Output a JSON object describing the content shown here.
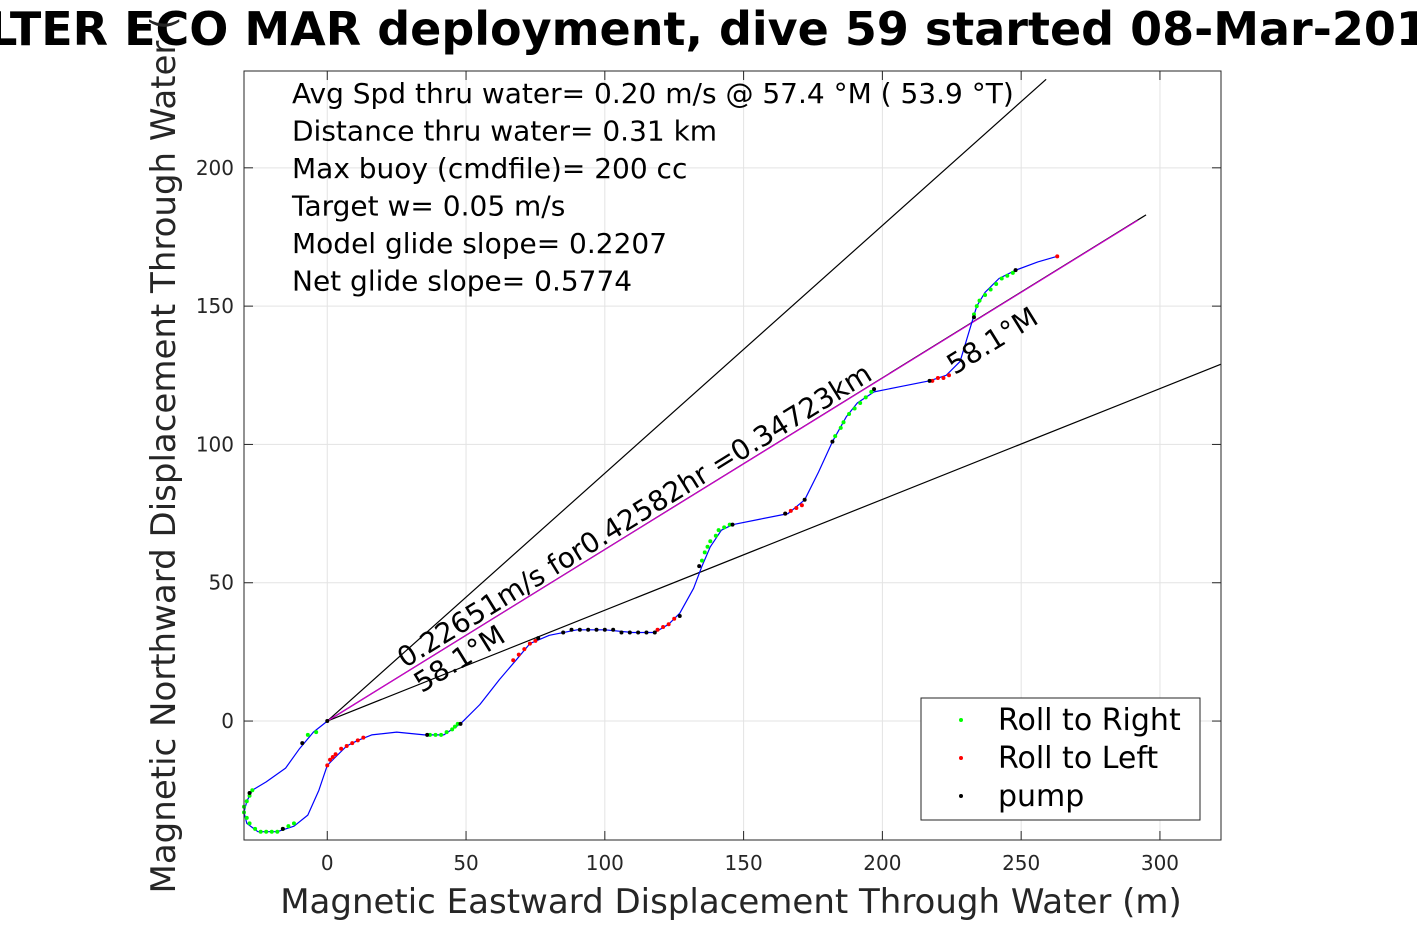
{
  "chart_data": {
    "type": "scatter",
    "title": "LTER ECO MAR deployment, dive 59 started 08-Mar-201",
    "xlabel": "Magnetic Eastward Displacement Through Water (m)",
    "ylabel": "Magnetic Northward Displacement Through Water (",
    "xlim": [
      -30,
      322
    ],
    "ylim": [
      -43,
      235
    ],
    "xticks": [
      0,
      50,
      100,
      150,
      200,
      250,
      300
    ],
    "yticks": [
      0,
      50,
      100,
      150,
      200
    ],
    "grid": true,
    "legend_position": "bottom-right",
    "info_lines": [
      "Avg Spd thru water=  0.20 m/s @  57.4 °M ( 53.9 °T)",
      "Distance thru water=  0.31 km",
      "Max buoy (cmdfile)= 200 cc",
      "Target w= 0.05 m/s",
      "Model glide slope= 0.2207",
      "Net glide slope= 0.5774"
    ],
    "annotations": {
      "speed_label": "0.22651m/s for0.42582hr =0.34723km",
      "heading_start": "58.1°M",
      "heading_end": "58.1°M"
    },
    "reference_lines": [
      {
        "name": "upper-cone",
        "color": "#000000",
        "points": [
          [
            0,
            0
          ],
          [
            259,
            232
          ]
        ]
      },
      {
        "name": "lower-cone",
        "color": "#000000",
        "points": [
          [
            0,
            0
          ],
          [
            322,
            129
          ]
        ]
      },
      {
        "name": "net-track",
        "color": "#000000",
        "points": [
          [
            0,
            0
          ],
          [
            295,
            183
          ]
        ]
      },
      {
        "name": "track-fit",
        "color": "#cc00cc",
        "points": [
          [
            0,
            0
          ],
          [
            292,
            181
          ]
        ]
      }
    ],
    "track": {
      "color": "#0000ff",
      "points": [
        [
          0,
          0
        ],
        [
          -5,
          -4
        ],
        [
          -10,
          -10
        ],
        [
          -15,
          -17
        ],
        [
          -22,
          -22
        ],
        [
          -27,
          -25
        ],
        [
          -29,
          -29
        ],
        [
          -30,
          -33
        ],
        [
          -29,
          -37
        ],
        [
          -25,
          -40
        ],
        [
          -18,
          -40
        ],
        [
          -12,
          -38
        ],
        [
          -7,
          -34
        ],
        [
          -3,
          -25
        ],
        [
          0,
          -16
        ],
        [
          3,
          -13
        ],
        [
          7,
          -9
        ],
        [
          11,
          -7
        ],
        [
          16,
          -5
        ],
        [
          25,
          -4
        ],
        [
          35,
          -5
        ],
        [
          42,
          -5
        ],
        [
          48,
          -1
        ],
        [
          55,
          6
        ],
        [
          62,
          15
        ],
        [
          68,
          22
        ],
        [
          73,
          28
        ],
        [
          80,
          31
        ],
        [
          90,
          33
        ],
        [
          100,
          33
        ],
        [
          110,
          32
        ],
        [
          118,
          32
        ],
        [
          123,
          35
        ],
        [
          127,
          39
        ],
        [
          132,
          48
        ],
        [
          135,
          56
        ],
        [
          138,
          63
        ],
        [
          142,
          69
        ],
        [
          146,
          71
        ],
        [
          156,
          73
        ],
        [
          166,
          75
        ],
        [
          172,
          80
        ],
        [
          177,
          90
        ],
        [
          182,
          101
        ],
        [
          187,
          110
        ],
        [
          191,
          115
        ],
        [
          197,
          119
        ],
        [
          207,
          121
        ],
        [
          217,
          123
        ],
        [
          223,
          125
        ],
        [
          228,
          130
        ],
        [
          231,
          140
        ],
        [
          234,
          150
        ],
        [
          237,
          155
        ],
        [
          242,
          160
        ],
        [
          248,
          163
        ],
        [
          256,
          166
        ],
        [
          263,
          168
        ]
      ]
    },
    "series": [
      {
        "name": "Roll to Right",
        "color": "#00ff00",
        "points": [
          [
            -4,
            -4
          ],
          [
            -7,
            -5
          ],
          [
            -27,
            -25
          ],
          [
            -28,
            -27
          ],
          [
            -29,
            -29
          ],
          [
            -30,
            -31
          ],
          [
            -30,
            -33
          ],
          [
            -29,
            -35
          ],
          [
            -28,
            -37
          ],
          [
            -26,
            -39
          ],
          [
            -24,
            -40
          ],
          [
            -22,
            -40
          ],
          [
            -20,
            -40
          ],
          [
            -18,
            -40
          ],
          [
            -16,
            -39
          ],
          [
            -14,
            -38
          ],
          [
            -12,
            -37
          ],
          [
            37,
            -5
          ],
          [
            39,
            -5
          ],
          [
            41,
            -5
          ],
          [
            43,
            -4
          ],
          [
            45,
            -3
          ],
          [
            46,
            -2
          ],
          [
            47,
            -1
          ],
          [
            135,
            58
          ],
          [
            136,
            61
          ],
          [
            137,
            63
          ],
          [
            138,
            65
          ],
          [
            140,
            67
          ],
          [
            141,
            69
          ],
          [
            143,
            70
          ],
          [
            145,
            71
          ],
          [
            183,
            103
          ],
          [
            185,
            106
          ],
          [
            186,
            108
          ],
          [
            188,
            111
          ],
          [
            190,
            113
          ],
          [
            192,
            115
          ],
          [
            194,
            117
          ],
          [
            196,
            119
          ],
          [
            233,
            147
          ],
          [
            234,
            150
          ],
          [
            235,
            152
          ],
          [
            237,
            154
          ],
          [
            239,
            156
          ],
          [
            241,
            158
          ],
          [
            243,
            160
          ],
          [
            245,
            161
          ],
          [
            247,
            162
          ]
        ]
      },
      {
        "name": "Roll to Left",
        "color": "#ff0000",
        "points": [
          [
            0,
            -16
          ],
          [
            1,
            -14
          ],
          [
            2,
            -13
          ],
          [
            3,
            -12
          ],
          [
            5,
            -10
          ],
          [
            7,
            -9
          ],
          [
            9,
            -8
          ],
          [
            11,
            -7
          ],
          [
            13,
            -6
          ],
          [
            67,
            22
          ],
          [
            69,
            24
          ],
          [
            71,
            26
          ],
          [
            73,
            28
          ],
          [
            75,
            29
          ],
          [
            119,
            33
          ],
          [
            121,
            34
          ],
          [
            123,
            35
          ],
          [
            125,
            37
          ],
          [
            165,
            75
          ],
          [
            167,
            76
          ],
          [
            169,
            77
          ],
          [
            171,
            78
          ],
          [
            218,
            123
          ],
          [
            220,
            124
          ],
          [
            222,
            124
          ],
          [
            224,
            125
          ],
          [
            263,
            168
          ]
        ]
      },
      {
        "name": "pump",
        "color": "#000000",
        "points": [
          [
            0,
            0
          ],
          [
            -9,
            -8
          ],
          [
            -28,
            -26
          ],
          [
            -16,
            -39
          ],
          [
            36,
            -5
          ],
          [
            48,
            -1
          ],
          [
            76,
            30
          ],
          [
            85,
            32
          ],
          [
            88,
            33
          ],
          [
            91,
            33
          ],
          [
            94,
            33
          ],
          [
            97,
            33
          ],
          [
            100,
            33
          ],
          [
            103,
            33
          ],
          [
            106,
            32
          ],
          [
            109,
            32
          ],
          [
            112,
            32
          ],
          [
            115,
            32
          ],
          [
            118,
            32
          ],
          [
            127,
            38
          ],
          [
            134,
            56
          ],
          [
            146,
            71
          ],
          [
            165,
            75
          ],
          [
            172,
            80
          ],
          [
            182,
            101
          ],
          [
            197,
            120
          ],
          [
            217,
            123
          ],
          [
            233,
            146
          ],
          [
            248,
            163
          ]
        ]
      }
    ]
  }
}
